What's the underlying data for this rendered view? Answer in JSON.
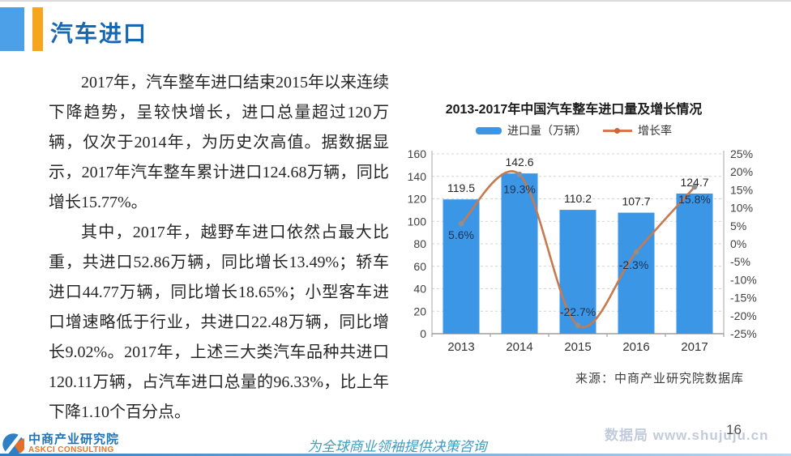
{
  "header": {
    "title": "汽车进口"
  },
  "article": {
    "paragraphs": [
      "2017年，汽车整车进口结束2015年以来连续下降趋势，呈较快增长，进口总量超过120万辆，仅次于2014年，为历史次高值。据数据显示，2017年汽车整车累计进口124.68万辆，同比增长15.77%。",
      "其中，2017年，越野车进口依然占最大比重，共进口52.86万辆，同比增长13.49%；轿车进口44.77万辆，同比增长18.65%；小型客车进口增速略低于行业，共进口22.48万辆，同比增长9.02%。2017年，上述三大类汽车品种共进口120.11万辆，占汽车进口总量的96.33%，比上年下降1.10个百分点。"
    ]
  },
  "chart": {
    "source": "来源：中商产业研究院数据库"
  },
  "chart_data": {
    "type": "bar+line",
    "title": "2013-2017年中国汽车整车进口量及增长情况",
    "categories": [
      "2013",
      "2014",
      "2015",
      "2016",
      "2017"
    ],
    "series": [
      {
        "name": "进口量（万辆）",
        "type": "bar",
        "axis": "left",
        "values": [
          119.5,
          142.6,
          110.2,
          107.7,
          124.7
        ],
        "labels": [
          "119.5",
          "142.6",
          "110.2",
          "107.7",
          "124.7"
        ],
        "color": "#3b96e6"
      },
      {
        "name": "增长率",
        "type": "line",
        "axis": "right",
        "values": [
          5.6,
          19.3,
          -22.7,
          -2.3,
          15.8
        ],
        "labels": [
          "5.6%",
          "19.3%",
          "-22.7%",
          "-2.3%",
          "15.8%"
        ],
        "color": "#c67a4e"
      }
    ],
    "left_axis": {
      "min": 0,
      "max": 160,
      "step": 20,
      "ticks": [
        "0",
        "20",
        "40",
        "60",
        "80",
        "100",
        "120",
        "140",
        "160"
      ]
    },
    "right_axis": {
      "min": -25,
      "max": 25,
      "step": 5,
      "ticks": [
        "25%",
        "20%",
        "15%",
        "10%",
        "5%",
        "0%",
        "-5%",
        "-10%",
        "-15%",
        "-20%",
        "-25%"
      ]
    },
    "grid": "dashed-horizontal",
    "legend_position": "top"
  },
  "footer": {
    "logo": {
      "name_cn": "中商产业研究院",
      "name_en": "ASKCI CONSULTING"
    },
    "slogan": "为全球商业领袖提供决策咨询",
    "watermark": "数据局 www.shujuju.cn",
    "page_number": "16"
  },
  "colors": {
    "header_block_blue": "#4ba0e8",
    "header_accent_orange": "#f6a51f",
    "title_blue": "#1668b3",
    "bar_blue": "#3b96e6",
    "line_orange": "#c67a4e",
    "pct_label_navy": "#1e3250",
    "slogan_teal": "#3f9cc0",
    "watermark_gray": "#c2cbdb"
  }
}
